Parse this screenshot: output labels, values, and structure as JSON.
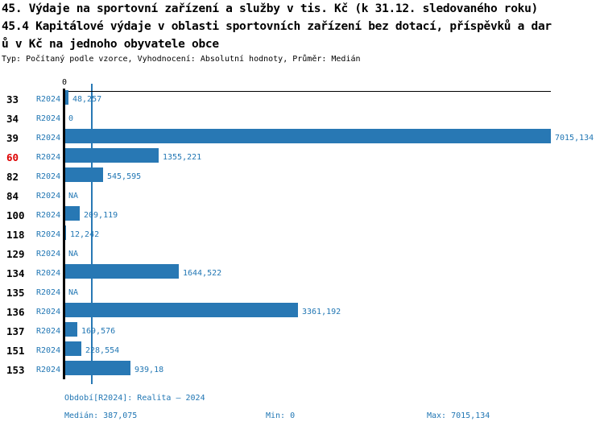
{
  "colors": {
    "accent_text": "#2277b4",
    "bar": "#2878b4",
    "median_line": "#2878b4",
    "highlight_row": "#dd0000"
  },
  "title": {
    "line1": "45. Výdaje na sportovní zařízení a služby v tis. Kč (k 31.12. sledovaného roku)",
    "line2": "45.4 Kapitálové výdaje v oblasti sportovních zařízení bez dotací, příspěvků a dar",
    "line3": "ů v Kč na jednoho obyvatele obce",
    "meta": "Typ: Počítaný podle vzorce, Vyhodnocení: Absolutní hodnoty, Průměr: Medián"
  },
  "chart_data": {
    "type": "bar",
    "orientation": "horizontal",
    "axis_zero_label": "0",
    "xlim": [
      0,
      7015.134
    ],
    "median_value": 387.075,
    "series_label": "R2024",
    "rows": [
      {
        "id": "33",
        "series": "R2024",
        "value": 48.257,
        "label": "48,257",
        "highlight": false
      },
      {
        "id": "34",
        "series": "R2024",
        "value": 0,
        "label": "0",
        "highlight": false
      },
      {
        "id": "39",
        "series": "R2024",
        "value": 7015.134,
        "label": "7015,134",
        "highlight": false
      },
      {
        "id": "60",
        "series": "R2024",
        "value": 1355.221,
        "label": "1355,221",
        "highlight": true
      },
      {
        "id": "82",
        "series": "R2024",
        "value": 545.595,
        "label": "545,595",
        "highlight": false
      },
      {
        "id": "84",
        "series": "R2024",
        "value": null,
        "label": "NA",
        "highlight": false
      },
      {
        "id": "100",
        "series": "R2024",
        "value": 209.119,
        "label": "209,119",
        "highlight": false
      },
      {
        "id": "118",
        "series": "R2024",
        "value": 12.242,
        "label": "12,242",
        "highlight": false
      },
      {
        "id": "129",
        "series": "R2024",
        "value": null,
        "label": "NA",
        "highlight": false
      },
      {
        "id": "134",
        "series": "R2024",
        "value": 1644.522,
        "label": "1644,522",
        "highlight": false
      },
      {
        "id": "135",
        "series": "R2024",
        "value": null,
        "label": "NA",
        "highlight": false
      },
      {
        "id": "136",
        "series": "R2024",
        "value": 3361.192,
        "label": "3361,192",
        "highlight": false
      },
      {
        "id": "137",
        "series": "R2024",
        "value": 169.576,
        "label": "169,576",
        "highlight": false
      },
      {
        "id": "151",
        "series": "R2024",
        "value": 228.554,
        "label": "228,554",
        "highlight": false
      },
      {
        "id": "153",
        "series": "R2024",
        "value": 939.18,
        "label": "939,18",
        "highlight": false
      }
    ]
  },
  "footer": {
    "period": "Období[R2024]: Realita – 2024",
    "median": "Medián: 387,075",
    "min": "Min: 0",
    "max": "Max: 7015,134"
  }
}
